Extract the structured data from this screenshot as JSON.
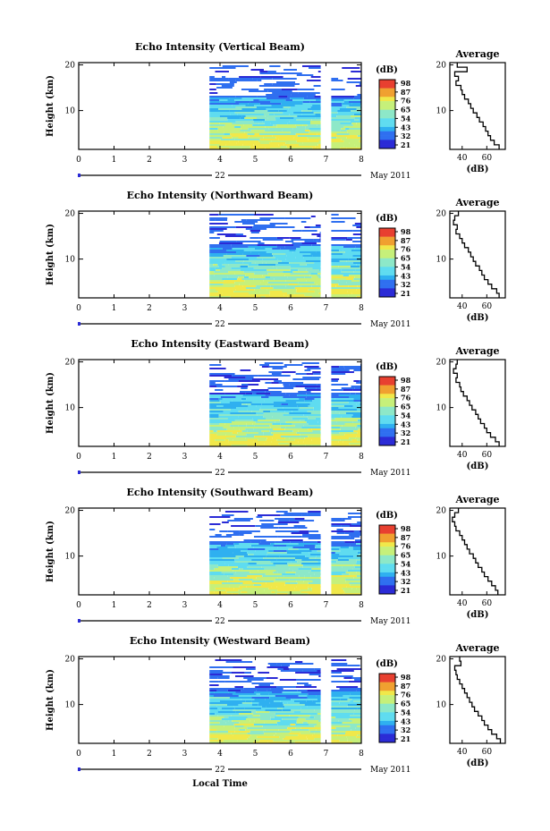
{
  "chart_data": [
    {
      "type": "heatmap",
      "title": "Echo Intensity (Vertical Beam)",
      "ylabel": "Height (km)",
      "y_ticks": [
        "20",
        "10"
      ],
      "ylim": [
        1.5,
        20.5
      ],
      "x_ticks": [
        "0",
        "1",
        "2",
        "3",
        "4",
        "5",
        "6",
        "7",
        "8"
      ],
      "xlim": [
        0,
        8
      ],
      "date_label": "22",
      "month_label": "May 2011",
      "data_coverage_hours": [
        [
          3.7,
          6.85
        ],
        [
          7.15,
          8.0
        ]
      ],
      "colorbar": {
        "unit": "(dB)",
        "ticks": [
          "98",
          "87",
          "76",
          "65",
          "54",
          "43",
          "32",
          "21"
        ]
      },
      "average_profile": {
        "title": "Average",
        "xlabel": "(dB)",
        "x_ticks": [
          "40",
          "60"
        ],
        "xlim": [
          30,
          75
        ],
        "y_ticks": [
          "20",
          "10"
        ],
        "ylim": [
          1.5,
          20.5
        ],
        "height_km": [
          2,
          3,
          4,
          5,
          6,
          7,
          8,
          9,
          10,
          11,
          12,
          13,
          14,
          15,
          16,
          17,
          18,
          19,
          20
        ],
        "db": [
          70,
          66,
          63,
          61,
          59,
          57,
          54,
          52,
          49,
          47,
          45,
          42,
          40,
          39,
          35,
          37,
          34,
          44,
          36
        ]
      }
    },
    {
      "type": "heatmap",
      "title": "Echo Intensity (Northward Beam)",
      "ylabel": "Height (km)",
      "y_ticks": [
        "20",
        "10"
      ],
      "ylim": [
        1.5,
        20.5
      ],
      "x_ticks": [
        "0",
        "1",
        "2",
        "3",
        "4",
        "5",
        "6",
        "7",
        "8"
      ],
      "xlim": [
        0,
        8
      ],
      "date_label": "22",
      "month_label": "May 2011",
      "data_coverage_hours": [
        [
          3.7,
          6.85
        ],
        [
          7.15,
          8.0
        ]
      ],
      "colorbar": {
        "unit": "(dB)",
        "ticks": [
          "98",
          "87",
          "76",
          "65",
          "54",
          "43",
          "32",
          "21"
        ]
      },
      "average_profile": {
        "title": "Average",
        "xlabel": "(dB)",
        "x_ticks": [
          "40",
          "60"
        ],
        "xlim": [
          30,
          75
        ],
        "y_ticks": [
          "20",
          "10"
        ],
        "ylim": [
          1.5,
          20.5
        ],
        "height_km": [
          2,
          3,
          4,
          5,
          6,
          7,
          8,
          9,
          10,
          11,
          12,
          13,
          14,
          15,
          16,
          17,
          18,
          19,
          20
        ],
        "db": [
          70,
          68,
          64,
          61,
          58,
          56,
          54,
          51,
          49,
          47,
          45,
          42,
          40,
          38,
          35,
          36,
          33,
          34,
          37
        ]
      }
    },
    {
      "type": "heatmap",
      "title": "Echo Intensity (Eastward Beam)",
      "ylabel": "Height (km)",
      "y_ticks": [
        "20",
        "10"
      ],
      "ylim": [
        1.5,
        20.5
      ],
      "x_ticks": [
        "0",
        "1",
        "2",
        "3",
        "4",
        "5",
        "6",
        "7",
        "8"
      ],
      "xlim": [
        0,
        8
      ],
      "date_label": "22",
      "month_label": "May 2011",
      "data_coverage_hours": [
        [
          3.7,
          6.85
        ],
        [
          7.15,
          8.0
        ]
      ],
      "colorbar": {
        "unit": "(dB)",
        "ticks": [
          "98",
          "87",
          "76",
          "65",
          "54",
          "43",
          "32",
          "21"
        ]
      },
      "average_profile": {
        "title": "Average",
        "xlabel": "(dB)",
        "x_ticks": [
          "40",
          "60"
        ],
        "xlim": [
          30,
          75
        ],
        "y_ticks": [
          "20",
          "10"
        ],
        "ylim": [
          1.5,
          20.5
        ],
        "height_km": [
          2,
          3,
          4,
          5,
          6,
          7,
          8,
          9,
          10,
          11,
          12,
          13,
          14,
          15,
          16,
          17,
          18,
          19,
          20
        ],
        "db": [
          70,
          67,
          63,
          60,
          58,
          55,
          53,
          51,
          48,
          46,
          44,
          41,
          39,
          38,
          35,
          36,
          33,
          35,
          36
        ]
      }
    },
    {
      "type": "heatmap",
      "title": "Echo Intensity (Southward Beam)",
      "ylabel": "Height (km)",
      "y_ticks": [
        "20",
        "10"
      ],
      "ylim": [
        1.5,
        20.5
      ],
      "x_ticks": [
        "0",
        "1",
        "2",
        "3",
        "4",
        "5",
        "6",
        "7",
        "8"
      ],
      "xlim": [
        0,
        8
      ],
      "date_label": "22",
      "month_label": "May 2011",
      "data_coverage_hours": [
        [
          3.7,
          6.85
        ],
        [
          7.15,
          8.0
        ]
      ],
      "colorbar": {
        "unit": "(dB)",
        "ticks": [
          "98",
          "87",
          "76",
          "65",
          "54",
          "43",
          "32",
          "21"
        ]
      },
      "average_profile": {
        "title": "Average",
        "xlabel": "(dB)",
        "x_ticks": [
          "40",
          "60"
        ],
        "xlim": [
          30,
          75
        ],
        "y_ticks": [
          "20",
          "10"
        ],
        "ylim": [
          1.5,
          20.5
        ],
        "height_km": [
          2,
          3,
          4,
          5,
          6,
          7,
          8,
          9,
          10,
          11,
          12,
          13,
          14,
          15,
          16,
          17,
          18,
          19,
          20
        ],
        "db": [
          69,
          67,
          64,
          61,
          58,
          56,
          53,
          51,
          49,
          46,
          44,
          42,
          40,
          38,
          35,
          34,
          32,
          34,
          37
        ]
      }
    },
    {
      "type": "heatmap",
      "title": "Echo Intensity (Westward Beam)",
      "ylabel": "Height (km)",
      "y_ticks": [
        "20",
        "10"
      ],
      "ylim": [
        1.5,
        20.5
      ],
      "x_ticks": [
        "0",
        "1",
        "2",
        "3",
        "4",
        "5",
        "6",
        "7",
        "8"
      ],
      "xlim": [
        0,
        8
      ],
      "date_label": "22",
      "month_label": "May 2011",
      "data_coverage_hours": [
        [
          3.7,
          6.85
        ],
        [
          7.15,
          8.0
        ]
      ],
      "colorbar": {
        "unit": "(dB)",
        "ticks": [
          "98",
          "87",
          "76",
          "65",
          "54",
          "43",
          "32",
          "21"
        ]
      },
      "average_profile": {
        "title": "Average",
        "xlabel": "(dB)",
        "x_ticks": [
          "40",
          "60"
        ],
        "xlim": [
          30,
          75
        ],
        "y_ticks": [
          "20",
          "10"
        ],
        "ylim": [
          1.5,
          20.5
        ],
        "height_km": [
          2,
          3,
          4,
          5,
          6,
          7,
          8,
          9,
          10,
          11,
          12,
          13,
          14,
          15,
          16,
          17,
          18,
          19,
          20
        ],
        "db": [
          71,
          68,
          64,
          61,
          58,
          56,
          53,
          50,
          48,
          46,
          44,
          42,
          40,
          38,
          36,
          35,
          34,
          39,
          38
        ]
      }
    }
  ],
  "footer": {
    "xlabel": "Local Time"
  },
  "colors": {
    "colormap": [
      "#2b2bd6",
      "#2f6ff0",
      "#2fb0f0",
      "#5fdcf0",
      "#8de8c8",
      "#c6f07a",
      "#f0e84a",
      "#f0a030",
      "#e84030"
    ]
  }
}
